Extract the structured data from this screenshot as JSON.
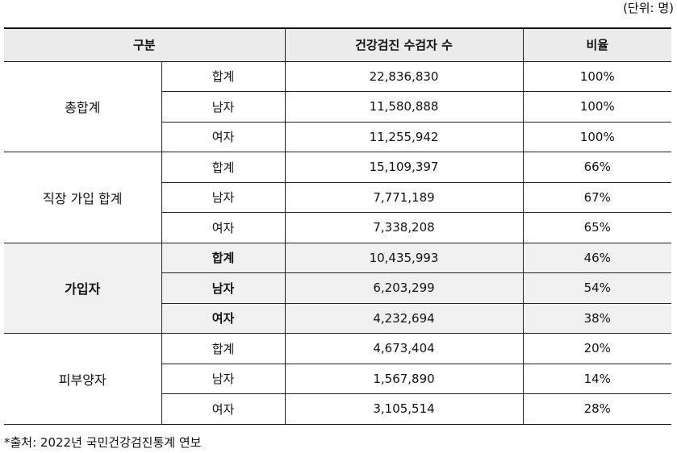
{
  "unit_note": "(단위: 명)",
  "header": {
    "category": "구분",
    "count": "건강검진 수검자 수",
    "ratio": "비율"
  },
  "groups": [
    {
      "name": "총합계",
      "rows": [
        {
          "label": "합계",
          "count": "22,836,830",
          "ratio": "100%"
        },
        {
          "label": "남자",
          "count": "11,580,888",
          "ratio": "100%"
        },
        {
          "label": "여자",
          "count": "11,255,942",
          "ratio": "100%"
        }
      ]
    },
    {
      "name": "직장 가입 합계",
      "rows": [
        {
          "label": "합계",
          "count": "15,109,397",
          "ratio": "66%"
        },
        {
          "label": "남자",
          "count": "7,771,189",
          "ratio": "67%"
        },
        {
          "label": "여자",
          "count": "7,338,208",
          "ratio": "65%"
        }
      ]
    },
    {
      "name": "가입자",
      "rows": [
        {
          "label": "합계",
          "count": "10,435,993",
          "ratio": "46%"
        },
        {
          "label": "남자",
          "count": "6,203,299",
          "ratio": "54%"
        },
        {
          "label": "여자",
          "count": "4,232,694",
          "ratio": "38%"
        }
      ]
    },
    {
      "name": "피부양자",
      "rows": [
        {
          "label": "합계",
          "count": "4,673,404",
          "ratio": "20%"
        },
        {
          "label": "남자",
          "count": "1,567,890",
          "ratio": "14%"
        },
        {
          "label": "여자",
          "count": "3,105,514",
          "ratio": "28%"
        }
      ]
    }
  ],
  "source": "*출처: 2022년 국민건강검진통계 연보",
  "colors": {
    "header_bg": "#ebebeb",
    "highlight_bg": "#f0f0f0",
    "border": "#222222"
  }
}
